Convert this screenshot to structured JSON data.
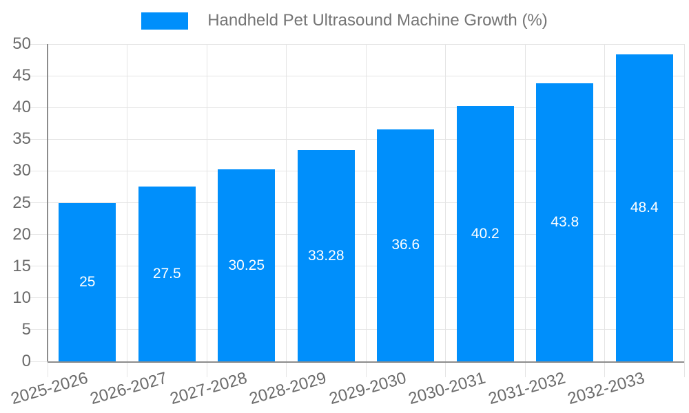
{
  "chart_data": {
    "type": "bar",
    "title": "Handheld Pet Ultrasound Machine Growth (%)",
    "legend_entries": [
      "Handheld Pet Ultrasound Machine Growth (%)"
    ],
    "legend_position": "top",
    "categories": [
      "2025-2026",
      "2026-2027",
      "2027-2028",
      "2028-2029",
      "2029-2030",
      "2030-2031",
      "2031-2032",
      "2032-2033"
    ],
    "values": [
      25,
      27.5,
      30.25,
      33.28,
      36.6,
      40.2,
      43.8,
      48.4
    ],
    "value_labels": [
      "25",
      "27.5",
      "30.25",
      "33.28",
      "36.6",
      "40.2",
      "43.8",
      "48.4"
    ],
    "xlabel": "",
    "ylabel": "",
    "ylim": [
      0,
      50
    ],
    "yticks": [
      0,
      5,
      10,
      15,
      20,
      25,
      30,
      35,
      40,
      45,
      50
    ],
    "grid": true,
    "x_label_rotation_deg": -16,
    "colors": {
      "bar": "#008FFB",
      "grid": "#e4e4e4",
      "axis_line": "#8c8c8c",
      "axis_text": "#6b6b6b",
      "title_text": "#757575",
      "value_label_text": "#ffffff",
      "background": "#ffffff"
    }
  }
}
